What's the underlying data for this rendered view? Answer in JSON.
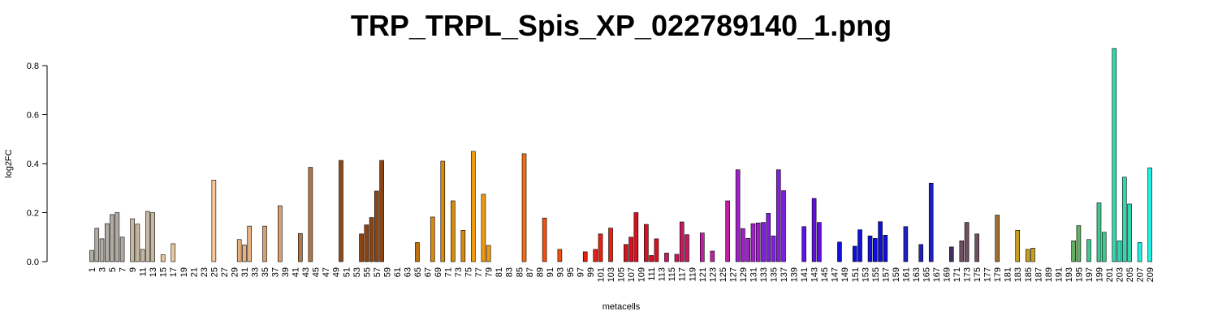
{
  "chart_data": {
    "type": "bar",
    "title": "TRP_TRPL_Spis_XP_022789140_1.png",
    "x_label": "metacells",
    "y_label": "log2FC",
    "categories": [
      "1",
      null,
      "3",
      null,
      "5",
      null,
      "7",
      null,
      "9",
      null,
      "11",
      null,
      "13",
      null,
      "15",
      null,
      "17",
      null,
      "19",
      null,
      "21",
      null,
      "23",
      null,
      "25",
      null,
      "27",
      null,
      "29",
      null,
      "31",
      null,
      "33",
      null,
      "35",
      null,
      "37",
      null,
      "39",
      null,
      "41",
      null,
      "43",
      null,
      "45",
      null,
      "47",
      null,
      "49",
      null,
      "51",
      null,
      "53",
      null,
      "55",
      null,
      "57",
      null,
      "59",
      null,
      "61",
      null,
      "63",
      null,
      "65",
      null,
      "67",
      null,
      "69",
      null,
      "71",
      null,
      "73",
      null,
      "75",
      null,
      "77",
      null,
      "79",
      null,
      "81",
      null,
      "83",
      null,
      "85",
      null,
      "87",
      null,
      "89",
      null,
      "91",
      null,
      "93",
      null,
      "95",
      null,
      "97",
      null,
      "99",
      null,
      "101",
      null,
      "103",
      null,
      "105",
      null,
      "107",
      null,
      "109",
      null,
      "111",
      null,
      "113",
      null,
      "115",
      null,
      "117",
      null,
      "119",
      null,
      "121",
      null,
      "123",
      null,
      "125",
      null,
      "127",
      null,
      "129",
      null,
      "131",
      null,
      "133",
      null,
      "135",
      null,
      "137",
      null,
      "139",
      null,
      "141",
      null,
      "143",
      null,
      "145",
      null,
      "147",
      null,
      "149",
      null,
      "151",
      null,
      "153",
      null,
      "155",
      null,
      "157",
      null,
      "159",
      null,
      "161",
      null,
      "163",
      null,
      "165",
      null,
      "167",
      null,
      "169",
      null,
      "171",
      null,
      "173",
      null,
      "175",
      null,
      "177",
      null,
      "179",
      null,
      "181",
      null,
      "183",
      null,
      "185",
      null,
      "187",
      null,
      "189",
      null,
      "191",
      null,
      "193",
      null,
      "195",
      null,
      "197",
      null,
      "199",
      null,
      "201",
      null,
      "203",
      null,
      "205",
      null,
      "207",
      null,
      "209"
    ],
    "values": [
      0.046,
      0.136,
      0.093,
      0.155,
      0.192,
      0.2,
      0.1,
      0,
      0.175,
      0.153,
      0.05,
      0.205,
      0.2,
      0,
      0.028,
      0,
      0.073,
      0,
      0,
      0,
      0,
      0,
      0,
      0,
      0.333,
      0,
      0,
      0,
      0,
      0.09,
      0.068,
      0.145,
      0,
      0,
      0.145,
      0,
      0,
      0.228,
      0,
      0,
      0,
      0.115,
      0,
      0.385,
      0,
      0,
      0,
      0,
      0,
      0.413,
      0,
      0,
      0,
      0.113,
      0.15,
      0.18,
      0.288,
      0.413,
      0,
      0,
      0,
      0,
      0,
      0,
      0.078,
      0,
      0,
      0.182,
      0,
      0.41,
      0,
      0.248,
      0,
      0.128,
      0,
      0.45,
      0,
      0.275,
      0.066,
      0,
      0,
      0,
      0,
      0,
      0,
      0.44,
      0,
      0,
      0,
      0.178,
      0,
      0,
      0.05,
      0,
      0,
      0,
      0,
      0.04,
      0,
      0.05,
      0.113,
      0,
      0.137,
      0,
      0,
      0.07,
      0.1,
      0.2,
      0,
      0.152,
      0.025,
      0.093,
      0,
      0.035,
      0,
      0.03,
      0.162,
      0.11,
      0,
      0,
      0.117,
      0,
      0.043,
      0,
      0,
      0.248,
      0,
      0.375,
      0.135,
      0.095,
      0.155,
      0.158,
      0.16,
      0.197,
      0.105,
      0.375,
      0.29,
      0,
      0,
      0,
      0.143,
      0,
      0.258,
      0.16,
      0,
      0,
      0,
      0.08,
      0,
      0,
      0.063,
      0.13,
      0,
      0.105,
      0.095,
      0.163,
      0.108,
      0,
      0,
      0,
      0.143,
      0,
      0,
      0.07,
      0,
      0.32,
      0,
      0,
      0,
      0.06,
      0,
      0.085,
      0.16,
      0,
      0.113,
      0,
      0,
      0,
      0.19,
      0,
      0,
      0,
      0.128,
      0,
      0.05,
      0.055,
      0,
      0,
      0,
      0,
      0,
      0,
      0,
      0.085,
      0.147,
      0,
      0.09,
      0,
      0.24,
      0.12,
      0,
      0.87,
      0.085,
      0.345,
      0.235,
      0,
      0.078,
      0,
      0.383
    ],
    "colors": [
      "#b0aca4",
      "#b0aca4",
      "#b0aca4",
      "#b0aca4",
      "#b0aca4",
      "#b0aca4",
      "#b0aca4",
      "#c8b8a0",
      "#c8b8a0",
      "#c8b8a0",
      "#c8b8a0",
      "#c8b8a0",
      "#c8b8a0",
      "#e8c8a0",
      "#e8c8a0",
      "#e8c8a0",
      "#e8c8a0",
      "#e8c8a0",
      "#e8c8a0",
      "#e8c8a0",
      "#e8c8a0",
      "#e8c8a0",
      "#e8c8a0",
      "#e8c8a0",
      "#f8c898",
      "#f8c898",
      "#f8c898",
      "#f8c898",
      "#f8c898",
      "#e8b080",
      "#e8b080",
      "#e8b080",
      "#e8b080",
      "#d8a070",
      "#d8a070",
      "#d8a070",
      "#d8a070",
      "#d8a070",
      "#d8a070",
      "#b07848",
      "#b07848",
      "#b07848",
      "#b07848",
      "#b07848",
      "#b07848",
      "#8b4a18",
      "#8b4a18",
      "#8b4a18",
      "#8b4a18",
      "#8b4a18",
      "#8b4a18",
      "#8b4a18",
      "#8b4513",
      "#8b4513",
      "#8b4513",
      "#8b4513",
      "#8b4513",
      "#8b4513",
      "#8b4513",
      "#c07010",
      "#c07010",
      "#c07010",
      "#c07010",
      "#c07010",
      "#c07010",
      "#c07010",
      "#d88a10",
      "#d88a10",
      "#d88a10",
      "#d88a10",
      "#d88a10",
      "#d88a10",
      "#d88a10",
      "#d88a10",
      "#f09a10",
      "#f09a10",
      "#f09a10",
      "#f09a10",
      "#f09a10",
      "#f09a10",
      "#f09a10",
      "#f07010",
      "#f07010",
      "#f07010",
      "#f07010",
      "#f07010",
      "#f07010",
      "#f07010",
      "#f05010",
      "#f05010",
      "#f05010",
      "#f05010",
      "#f05010",
      "#f05010",
      "#e82010",
      "#e82010",
      "#e82010",
      "#e82010",
      "#e82010",
      "#e82010",
      "#e82010",
      "#e82010",
      "#e82010",
      "#e82010",
      "#d81020",
      "#d81020",
      "#d81020",
      "#d81020",
      "#d81020",
      "#d81020",
      "#d81020",
      "#d81020",
      "#c81860",
      "#c81860",
      "#c81860",
      "#c81860",
      "#c81860",
      "#c81860",
      "#c81860",
      "#c81860",
      "#c020a0",
      "#c020a0",
      "#c020a0",
      "#c020a0",
      "#c020a0",
      "#c020a0",
      "#a020c8",
      "#a020c8",
      "#a020c8",
      "#a020c8",
      "#a020c8",
      "#a020c8",
      "#8020d8",
      "#8020d8",
      "#8020d8",
      "#8020d8",
      "#8020d8",
      "#8020d8",
      "#8020d8",
      "#6010e0",
      "#6010e0",
      "#6010e0",
      "#6010e0",
      "#6010e0",
      "#6010e0",
      "#6010e0",
      "#1010d8",
      "#1010d8",
      "#1010d8",
      "#1010d8",
      "#1010d8",
      "#1010d8",
      "#1010d8",
      "#1010d8",
      "#1010d8",
      "#1010d8",
      "#1010d8",
      "#1010d8",
      "#2020c0",
      "#2020c0",
      "#2020c0",
      "#2020c0",
      "#2020c0",
      "#2020c0",
      "#2020c0",
      "#2020c0",
      "#403060",
      "#403060",
      "#403060",
      "#403060",
      "#705060",
      "#705060",
      "#705060",
      "#705060",
      "#705060",
      "#705060",
      "#a07030",
      "#a07030",
      "#a07030",
      "#a07030",
      "#a07030",
      "#a07030",
      "#c8a020",
      "#c8a020",
      "#c8a020",
      "#c8a020",
      "#c8a020",
      "#c8a020",
      "#c8a020",
      "#60b060",
      "#60b060",
      "#60b060",
      "#60b060",
      "#60b060",
      "#60b060",
      "#60b060",
      "#40c890",
      "#40c890",
      "#40c890",
      "#40c890",
      "#40c890",
      "#30d8b0",
      "#30d8b0",
      "#30d8b0",
      "#30d8b0",
      "#30d8b0",
      "#20f0e0",
      "#20f0e0",
      "#20f0e0"
    ],
    "ylim": [
      0,
      0.9
    ],
    "yticks": [
      {
        "value": 0,
        "label": "0.0"
      },
      0.2,
      0.4,
      0.6,
      0.8
    ]
  }
}
